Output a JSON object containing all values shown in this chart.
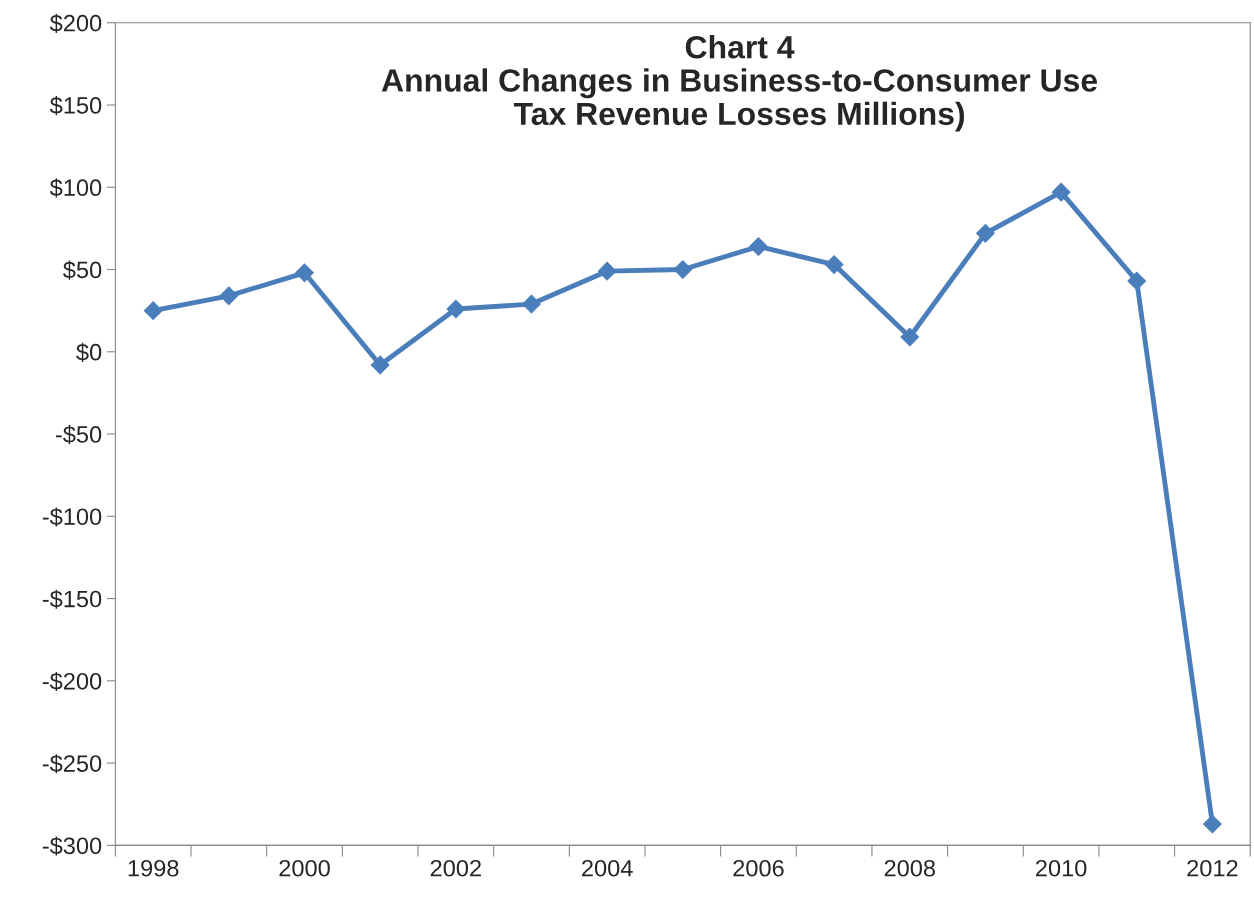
{
  "chart_data": {
    "type": "line",
    "title": "Chart 4\nAnnual Changes in Business-to-Consumer Use\nTax Revenue Losses Millions)",
    "categories": [
      "1998",
      null,
      "2000",
      null,
      "2002",
      null,
      "2004",
      null,
      "2006",
      null,
      "2008",
      null,
      "2010",
      null,
      "2012"
    ],
    "series": [
      {
        "color": "#4a7ebb",
        "values": [
          25,
          34,
          48,
          -8,
          26,
          29,
          49,
          50,
          64,
          53,
          9,
          72,
          97,
          43,
          -287
        ]
      }
    ],
    "ylim": [
      -300,
      200
    ],
    "yticks": [
      {
        "value": -300,
        "label": "-$300"
      },
      {
        "value": -250,
        "label": "-$250"
      },
      {
        "value": -200,
        "label": "-$200"
      },
      {
        "value": -150,
        "label": "-$150"
      },
      {
        "value": -100,
        "label": "-$100"
      },
      {
        "value": -50,
        "label": "-$50"
      },
      {
        "value": 0,
        "label": "$0"
      },
      {
        "value": 50,
        "label": "$50"
      },
      {
        "value": 100,
        "label": "$100"
      },
      {
        "value": 150,
        "label": "$150"
      },
      {
        "value": 200,
        "label": "$200"
      }
    ],
    "marker": "diamond",
    "line_style": "solid",
    "grid": false,
    "legend": false
  }
}
